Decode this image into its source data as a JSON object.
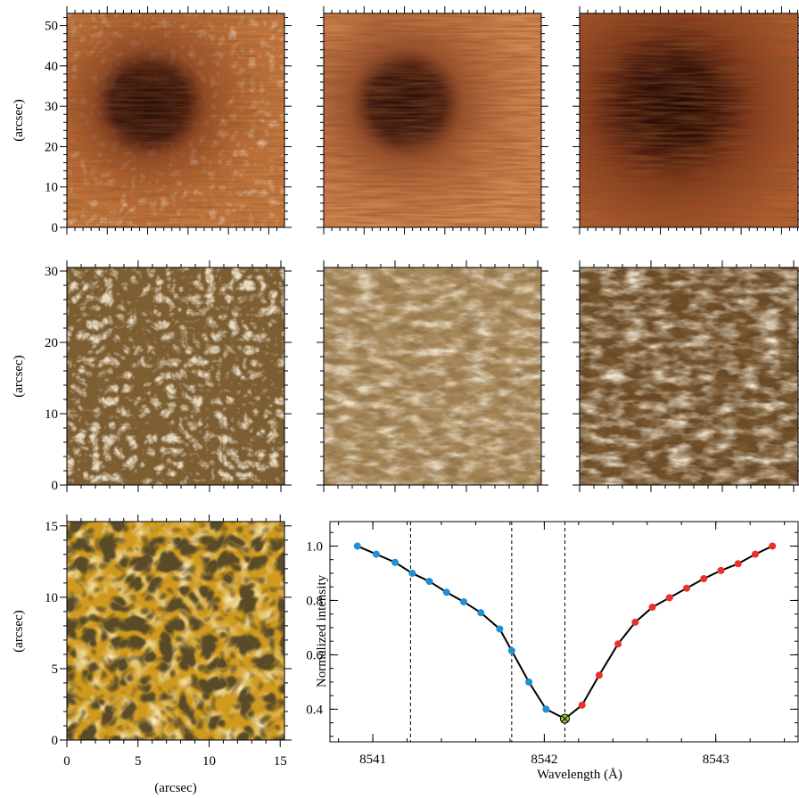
{
  "colors": {
    "ca_ii_panels": "#b5652c",
    "photosphere_panels": "#7a5a30",
    "granulation_panel": "#c8900e",
    "profile_line": "#000000",
    "blue_wing_points": "#1f8fd6",
    "red_wing_points": "#e8322a",
    "line_core_point": "#9ccc3c"
  },
  "panels": {
    "row1": {
      "ylabel": "(arcsec)",
      "yticks": [
        "0",
        "10",
        "20",
        "30",
        "40",
        "50"
      ],
      "ylim": [
        0,
        53
      ],
      "image_type": "sunspot"
    },
    "row2": {
      "ylabel": "(arcsec)",
      "yticks": [
        "0",
        "10",
        "20",
        "30"
      ],
      "ylim": [
        0,
        30.5
      ],
      "image_type": "fibrils"
    },
    "row3": {
      "ylabel": "(arcsec)",
      "xlabel": "(arcsec)",
      "yticks": [
        "0",
        "5",
        "10",
        "15"
      ],
      "xticks": [
        "0",
        "5",
        "10",
        "15"
      ],
      "ylim": [
        0,
        15.3
      ],
      "xlim": [
        0,
        15.3
      ],
      "image_type": "granulation"
    }
  },
  "chart_data": {
    "type": "line",
    "title": "",
    "xlabel": "Wavelength (Å)",
    "ylabel": "Normalized intensity",
    "xlim": [
      8540.75,
      8543.48
    ],
    "ylim": [
      0.28,
      1.09
    ],
    "xticks": [
      "8541",
      "8542",
      "8543"
    ],
    "yticks": [
      "0.4",
      "0.6",
      "0.8",
      "1.0"
    ],
    "vertical_dashed_lines": [
      8541.22,
      8541.81,
      8542.12
    ],
    "grid": false,
    "series": [
      {
        "color_group": "blue",
        "x": [
          8540.91,
          8541.02,
          8541.13,
          8541.23,
          8541.33,
          8541.43,
          8541.53,
          8541.63,
          8541.74,
          8541.81,
          8541.91,
          8542.01
        ],
        "y": [
          1.0,
          0.97,
          0.94,
          0.9,
          0.87,
          0.83,
          0.795,
          0.755,
          0.695,
          0.615,
          0.5,
          0.4
        ]
      },
      {
        "color_group": "core",
        "x": [
          8542.12
        ],
        "y": [
          0.365
        ]
      },
      {
        "color_group": "red",
        "x": [
          8542.22,
          8542.32,
          8542.43,
          8542.53,
          8542.63,
          8542.73,
          8542.83,
          8542.93,
          8543.03,
          8543.13,
          8543.23,
          8543.33
        ],
        "y": [
          0.415,
          0.525,
          0.64,
          0.72,
          0.775,
          0.81,
          0.845,
          0.88,
          0.91,
          0.935,
          0.97,
          1.0
        ]
      }
    ]
  }
}
